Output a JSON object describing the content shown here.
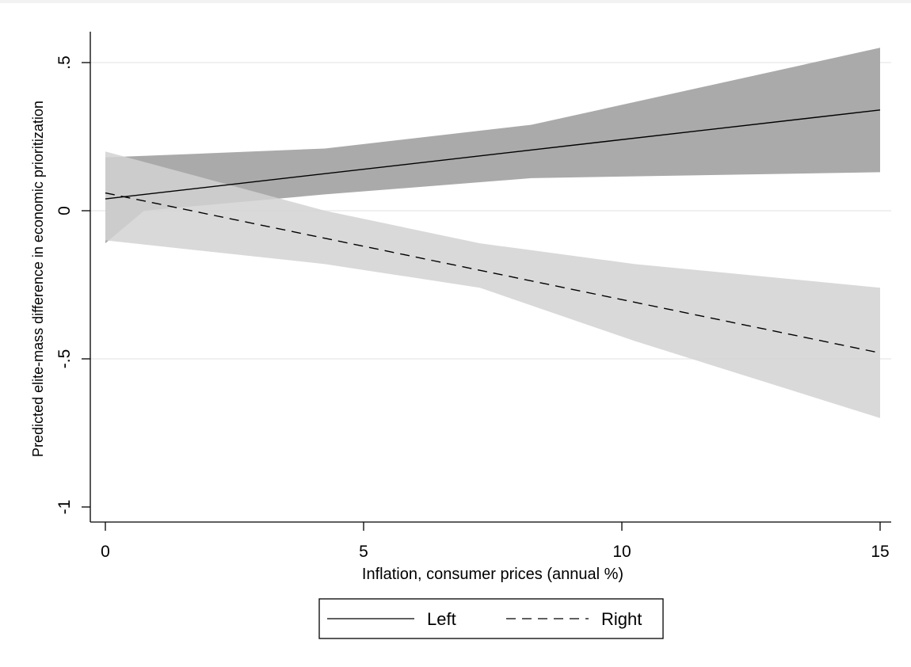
{
  "chart_data": {
    "type": "line",
    "xlabel": "Inflation, consumer prices (annual %)",
    "ylabel": "Predicted elite-mass difference in economic prioritization",
    "xlim": [
      0,
      15
    ],
    "ylim": [
      -1,
      0.6
    ],
    "x_ticks": [
      0,
      5,
      10,
      15
    ],
    "x_tick_labels": [
      "0",
      "5",
      "10",
      "15"
    ],
    "y_ticks": [
      0.5,
      0,
      -0.5,
      -1
    ],
    "y_tick_labels": [
      ".5",
      "0",
      "-.5",
      "-1"
    ],
    "grid": true,
    "legend_placement": "bottom",
    "series": [
      {
        "name": "Left",
        "line_style": "solid",
        "band_color": "#aaaaaa",
        "x": [
          0,
          15
        ],
        "y": [
          0.04,
          0.34
        ],
        "ci_lower": [
          -0.11,
          0.13
        ],
        "ci_upper": [
          0.18,
          0.55
        ],
        "ci_x": [
          0,
          0.75,
          4.25,
          8.25,
          15
        ],
        "ci_lower_curve": [
          -0.11,
          0.0,
          0.055,
          0.11,
          0.13
        ],
        "ci_upper_curve": [
          0.18,
          0.185,
          0.21,
          0.29,
          0.55
        ]
      },
      {
        "name": "Right",
        "line_style": "dashed",
        "band_color": "#d2d2d2",
        "x": [
          0,
          15
        ],
        "y": [
          0.06,
          -0.48
        ],
        "ci_lower": [
          -0.1,
          -0.7
        ],
        "ci_upper": [
          0.2,
          -0.26
        ],
        "ci_x": [
          0,
          4.25,
          7.25,
          10.25,
          15
        ],
        "ci_lower_curve": [
          -0.1,
          -0.18,
          -0.26,
          -0.44,
          -0.7
        ],
        "ci_upper_curve": [
          0.2,
          -0.0,
          -0.11,
          -0.18,
          -0.26
        ]
      }
    ]
  }
}
